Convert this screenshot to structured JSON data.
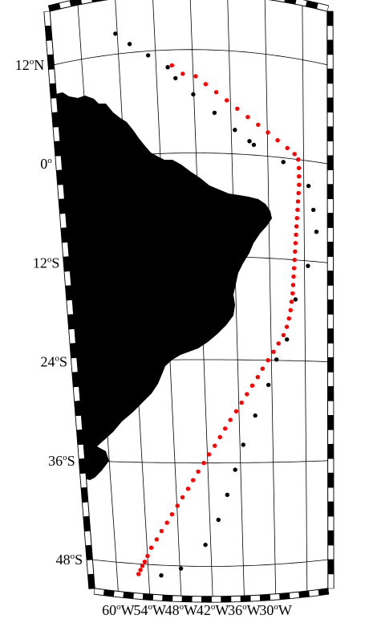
{
  "map": {
    "colors": {
      "land": "#000000",
      "ocean": "#ffffff",
      "graticule": "#000000",
      "frame_dark": "#000000",
      "frame_light": "#ffffff",
      "track_red": "#ff0000",
      "track_black": "#000000"
    },
    "lat_labels": [
      {
        "deg": "12",
        "o": "o",
        "hem": "N"
      },
      {
        "deg": "0",
        "o": "o",
        "hem": ""
      },
      {
        "deg": "12",
        "o": "o",
        "hem": "S"
      },
      {
        "deg": "24",
        "o": "o",
        "hem": "S"
      },
      {
        "deg": "36",
        "o": "o",
        "hem": "S"
      },
      {
        "deg": "48",
        "o": "o",
        "hem": "S"
      }
    ],
    "lon_labels": [
      {
        "deg": "60",
        "o": "o",
        "hem": "W"
      },
      {
        "deg": "54",
        "o": "o",
        "hem": "W"
      },
      {
        "deg": "48",
        "o": "o",
        "hem": "W"
      },
      {
        "deg": "42",
        "o": "o",
        "hem": "W"
      },
      {
        "deg": "36",
        "o": "o",
        "hem": "W"
      },
      {
        "deg": "30",
        "o": "o",
        "hem": "W"
      }
    ],
    "tracks": {
      "red": [
        [
          -45.4,
          10.2
        ],
        [
          -43.7,
          9.2
        ],
        [
          -41.6,
          8.9
        ],
        [
          -40.0,
          8.0
        ],
        [
          -38.3,
          7.1
        ],
        [
          -36.6,
          6.2
        ],
        [
          -34.9,
          5.3
        ],
        [
          -33.2,
          4.4
        ],
        [
          -31.5,
          3.6
        ],
        [
          -29.9,
          2.8
        ],
        [
          -28.3,
          2.0
        ],
        [
          -26.7,
          1.2
        ],
        [
          -25.5,
          0.6
        ],
        [
          -24.9,
          0.0
        ],
        [
          -24.8,
          -1.0
        ],
        [
          -24.8,
          -2.0
        ],
        [
          -24.8,
          -3.0
        ],
        [
          -24.9,
          -4.0
        ],
        [
          -25.0,
          -5.0
        ],
        [
          -25.1,
          -6.0
        ],
        [
          -25.2,
          -7.0
        ],
        [
          -25.3,
          -8.0
        ],
        [
          -25.4,
          -9.0
        ],
        [
          -25.5,
          -10.0
        ],
        [
          -25.6,
          -11.0
        ],
        [
          -25.7,
          -12.0
        ],
        [
          -25.8,
          -13.0
        ],
        [
          -25.9,
          -14.0
        ],
        [
          -26.0,
          -15.0
        ],
        [
          -26.1,
          -16.0
        ],
        [
          -26.3,
          -17.0
        ],
        [
          -26.5,
          -18.0
        ],
        [
          -26.8,
          -19.0
        ],
        [
          -27.2,
          -20.0
        ],
        [
          -27.8,
          -21.0
        ],
        [
          -28.7,
          -22.0
        ],
        [
          -29.6,
          -23.0
        ],
        [
          -30.6,
          -24.0
        ],
        [
          -31.6,
          -25.0
        ],
        [
          -32.5,
          -26.0
        ],
        [
          -33.5,
          -27.0
        ],
        [
          -34.5,
          -28.0
        ],
        [
          -35.5,
          -29.0
        ],
        [
          -36.5,
          -30.0
        ],
        [
          -37.6,
          -31.0
        ],
        [
          -38.6,
          -32.0
        ],
        [
          -39.6,
          -33.0
        ],
        [
          -40.6,
          -34.0
        ],
        [
          -41.7,
          -35.0
        ],
        [
          -42.7,
          -36.0
        ],
        [
          -43.8,
          -37.0
        ],
        [
          -44.8,
          -38.0
        ],
        [
          -45.8,
          -39.0
        ],
        [
          -46.9,
          -40.0
        ],
        [
          -47.9,
          -41.0
        ],
        [
          -49.0,
          -42.0
        ],
        [
          -50.0,
          -43.0
        ],
        [
          -51.1,
          -44.0
        ],
        [
          -52.1,
          -45.0
        ],
        [
          -53.2,
          -46.0
        ],
        [
          -54.0,
          -47.0
        ],
        [
          -54.6,
          -47.7
        ],
        [
          -55.1,
          -48.2
        ],
        [
          -55.5,
          -48.7
        ],
        [
          -55.9,
          -49.2
        ]
      ],
      "black": [
        [
          -54.3,
          14.4
        ],
        [
          -52.1,
          13.0
        ],
        [
          -49.2,
          11.5
        ],
        [
          -46.1,
          10.0
        ],
        [
          -44.9,
          8.7
        ],
        [
          -42.1,
          6.8
        ],
        [
          -38.7,
          4.7
        ],
        [
          -35.4,
          2.8
        ],
        [
          -33.0,
          1.6
        ],
        [
          -32.3,
          1.2
        ],
        [
          -27.4,
          -0.5
        ],
        [
          -23.2,
          -3.0
        ],
        [
          -22.4,
          -5.8
        ],
        [
          -21.9,
          -8.4
        ],
        [
          -23.4,
          -12.6
        ],
        [
          -25.6,
          -16.7
        ],
        [
          -27.2,
          -21.5
        ],
        [
          -29.1,
          -23.9
        ],
        [
          -30.6,
          -26.9
        ],
        [
          -33.1,
          -30.5
        ],
        [
          -35.4,
          -33.9
        ],
        [
          -37.0,
          -36.8
        ],
        [
          -38.6,
          -39.7
        ],
        [
          -40.4,
          -42.6
        ],
        [
          -43.0,
          -45.5
        ],
        [
          -47.8,
          -48.3
        ],
        [
          -51.6,
          -49.2
        ]
      ]
    }
  }
}
